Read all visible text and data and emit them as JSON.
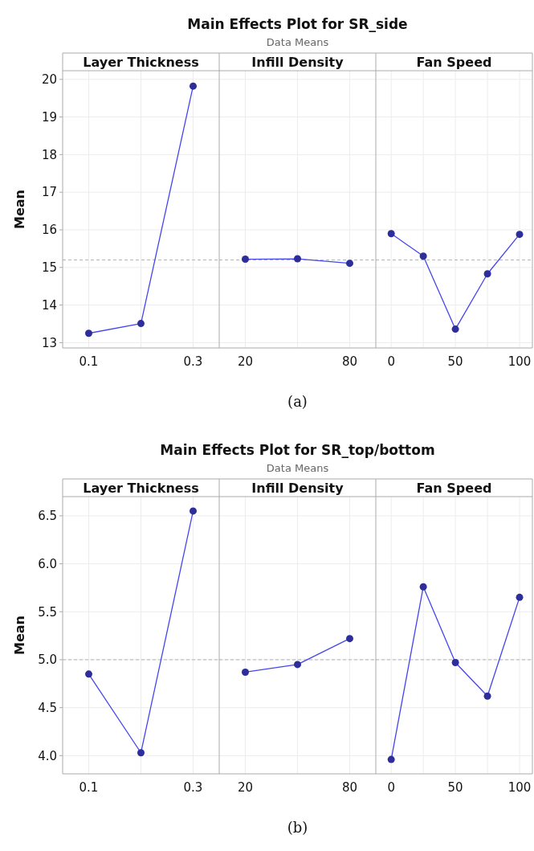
{
  "chart_data": [
    {
      "type": "line",
      "title": "Layer Thickness",
      "annotations": [
        "Main Effects Plot for SR_side",
        "Data Means",
        "(a)"
      ],
      "ylabel": "Mean",
      "x": [
        0.1,
        0.2,
        0.3
      ],
      "series": [
        {
          "color": "#4545ee",
          "values": [
            13.25,
            13.51,
            19.82
          ]
        }
      ],
      "xlim": [
        0.05,
        0.35
      ],
      "xticks": [
        0.1,
        {
          "value": 0.2,
          "label": null
        },
        0.3
      ],
      "ylim": [
        12.86,
        20.23
      ],
      "yticks": [
        13,
        14,
        15,
        16,
        17,
        18,
        19,
        20
      ],
      "grid": true,
      "marker": "circle",
      "line_style": "solid",
      "ref_lines": [
        {
          "axis": "y",
          "value": 15.2,
          "color": "#b4b4b4",
          "line_style": "dashed"
        }
      ]
    },
    {
      "type": "line",
      "title": "Infill Density",
      "x": [
        20,
        50,
        80
      ],
      "series": [
        {
          "color": "#4545ee",
          "values": [
            15.22,
            15.23,
            15.11
          ]
        }
      ],
      "xlim": [
        5,
        95
      ],
      "xticks": [
        20,
        {
          "value": 50,
          "label": null
        },
        80
      ],
      "ylim": [
        12.86,
        20.23
      ],
      "yticks": [
        13,
        14,
        15,
        16,
        17,
        18,
        19,
        20
      ],
      "tick_labels": "x",
      "grid": true,
      "marker": "circle",
      "line_style": "solid",
      "ref_lines": [
        {
          "axis": "y",
          "value": 15.2,
          "color": "#b4b4b4",
          "line_style": "dashed"
        }
      ]
    },
    {
      "type": "line",
      "title": "Fan Speed",
      "x": [
        0,
        25,
        50,
        75,
        100
      ],
      "series": [
        {
          "color": "#4545ee",
          "values": [
            15.9,
            15.3,
            13.36,
            14.83,
            15.88
          ]
        }
      ],
      "xlim": [
        -12,
        110
      ],
      "xticks": [
        0,
        {
          "value": 25,
          "label": null
        },
        50,
        {
          "value": 75,
          "label": null
        },
        100
      ],
      "ylim": [
        12.86,
        20.23
      ],
      "yticks": [
        13,
        14,
        15,
        16,
        17,
        18,
        19,
        20
      ],
      "tick_labels": "x",
      "grid": true,
      "marker": "circle",
      "line_style": "solid",
      "ref_lines": [
        {
          "axis": "y",
          "value": 15.2,
          "color": "#b4b4b4",
          "line_style": "dashed"
        }
      ]
    },
    {
      "type": "line",
      "title": "Layer Thickness",
      "annotations": [
        "Main Effects Plot for SR_top/bottom",
        "Data Means",
        "(b)"
      ],
      "ylabel": "Mean",
      "x": [
        0.1,
        0.2,
        0.3
      ],
      "series": [
        {
          "color": "#4545ee",
          "values": [
            4.85,
            4.03,
            6.55
          ]
        }
      ],
      "xlim": [
        0.05,
        0.35
      ],
      "xticks": [
        0.1,
        {
          "value": 0.2,
          "label": null
        },
        0.3
      ],
      "ylim": [
        3.81,
        6.7
      ],
      "yticks": [
        {
          "value": 4,
          "label": "4.0"
        },
        4.5,
        {
          "value": 5,
          "label": "5.0"
        },
        5.5,
        {
          "value": 6,
          "label": "6.0"
        },
        6.5
      ],
      "grid": true,
      "marker": "circle",
      "line_style": "solid",
      "ref_lines": [
        {
          "axis": "y",
          "value": 5.0,
          "color": "#b4b4b4",
          "line_style": "dashed"
        }
      ]
    },
    {
      "type": "line",
      "title": "Infill Density",
      "x": [
        20,
        50,
        80
      ],
      "series": [
        {
          "color": "#4545ee",
          "values": [
            4.87,
            4.95,
            5.22
          ]
        }
      ],
      "xlim": [
        5,
        95
      ],
      "xticks": [
        20,
        {
          "value": 50,
          "label": null
        },
        80
      ],
      "ylim": [
        3.81,
        6.7
      ],
      "yticks": [
        4,
        4.5,
        5,
        5.5,
        6,
        6.5
      ],
      "tick_labels": "x",
      "grid": true,
      "marker": "circle",
      "line_style": "solid",
      "ref_lines": [
        {
          "axis": "y",
          "value": 5.0,
          "color": "#b4b4b4",
          "line_style": "dashed"
        }
      ]
    },
    {
      "type": "line",
      "title": "Fan Speed",
      "x": [
        0,
        25,
        50,
        75,
        100
      ],
      "series": [
        {
          "color": "#4545ee",
          "values": [
            3.96,
            5.76,
            4.97,
            4.62,
            5.65
          ]
        }
      ],
      "xlim": [
        -12,
        110
      ],
      "xticks": [
        0,
        {
          "value": 25,
          "label": null
        },
        50,
        {
          "value": 75,
          "label": null
        },
        100
      ],
      "ylim": [
        3.81,
        6.7
      ],
      "yticks": [
        4,
        4.5,
        5,
        5.5,
        6,
        6.5
      ],
      "tick_labels": "x",
      "grid": true,
      "marker": "circle",
      "line_style": "solid",
      "ref_lines": [
        {
          "axis": "y",
          "value": 5.0,
          "color": "#b4b4b4",
          "line_style": "dashed"
        }
      ]
    }
  ]
}
